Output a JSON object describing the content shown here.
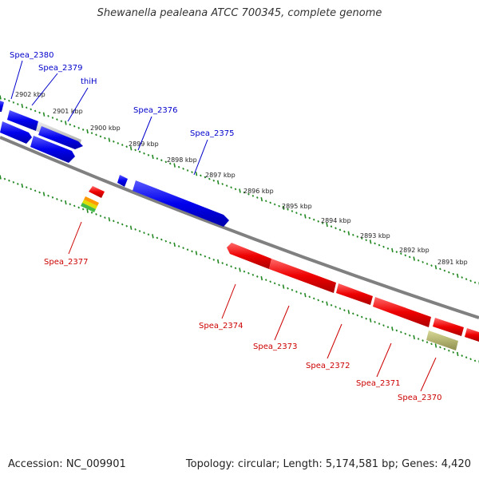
{
  "title": "Shewanella pealeana ATCC 700345, complete genome",
  "footer": {
    "accession": "Accession: NC_009901",
    "topology": "Topology: circular; Length: 5,174,581 bp; Genes: 4,420"
  },
  "colors": {
    "forward_gene": "#0000ee",
    "reverse_gene": "#ee0000",
    "pseudo_gene": "#aaaa66",
    "backbone": "#808080",
    "tick": "#228822"
  },
  "ticks": [
    "2902 kbp",
    "2901 kbp",
    "2900 kbp",
    "2899 kbp",
    "2898 kbp",
    "2897 kbp",
    "2896 kbp",
    "2895 kbp",
    "2894 kbp",
    "2893 kbp",
    "2892 kbp",
    "2891 kbp"
  ],
  "genes_forward": [
    "Spea_2380",
    "Spea_2379",
    "thiH",
    "Spea_2376",
    "Spea_2375"
  ],
  "genes_reverse": [
    "Spea_2377",
    "Spea_2374",
    "Spea_2373",
    "Spea_2372",
    "Spea_2371",
    "Spea_2370"
  ]
}
